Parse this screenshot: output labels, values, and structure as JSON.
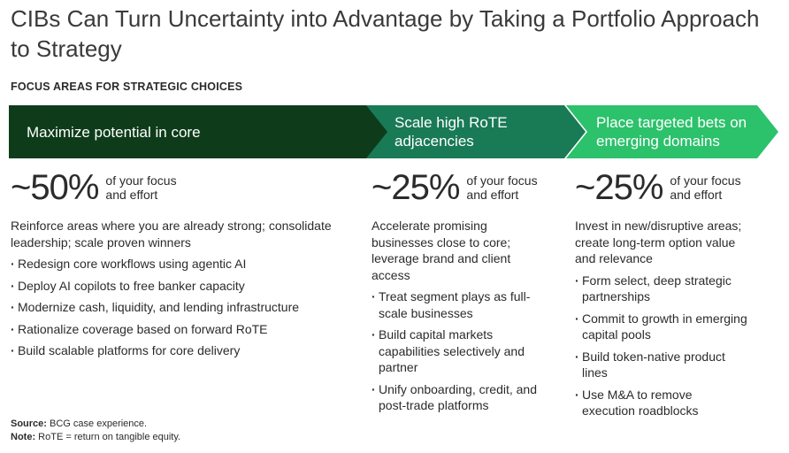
{
  "title": "CIBs Can Turn Uncertainty into Advantage by Taking a Portfolio Approach to Strategy",
  "section_label": "FOCUS AREAS FOR STRATEGIC CHOICES",
  "colors": {
    "band1": "#0e3c1a",
    "band2": "#197a56",
    "band3": "#2cc16b"
  },
  "columns": [
    {
      "band_label": "Maximize potential in core",
      "percent": "~50%",
      "percent_note": "of your focus and effort",
      "lead": "Reinforce areas where you are already strong; consolidate leadership; scale proven winners",
      "bullets": [
        "Redesign core workflows using agentic AI",
        "Deploy AI copilots to free banker capacity",
        "Modernize cash, liquidity, and lending infrastructure",
        "Rationalize coverage based on forward RoTE",
        "Build scalable platforms for core delivery"
      ]
    },
    {
      "band_label": "Scale high RoTE adjacencies",
      "percent": "~25%",
      "percent_note": "of your focus and effort",
      "lead": "Accelerate promising businesses close to core; leverage brand and client access",
      "bullets": [
        "Treat segment plays as full-scale businesses",
        "Build capital markets capabilities selectively and partner",
        "Unify onboarding, credit, and post-trade platforms"
      ]
    },
    {
      "band_label": "Place targeted bets on emerging domains",
      "percent": "~25%",
      "percent_note": "of your focus and effort",
      "lead": "Invest in new/disruptive areas; create long-term option value and relevance",
      "bullets": [
        "Form select, deep strategic partnerships",
        "Commit to growth in emerging capital pools",
        "Build token-native product lines",
        "Use M&A to remove execution roadblocks"
      ]
    }
  ],
  "footer": {
    "source_label": "Source:",
    "source_text": "BCG case experience.",
    "note_label": "Note:",
    "note_text": "RoTE = return on tangible equity."
  }
}
